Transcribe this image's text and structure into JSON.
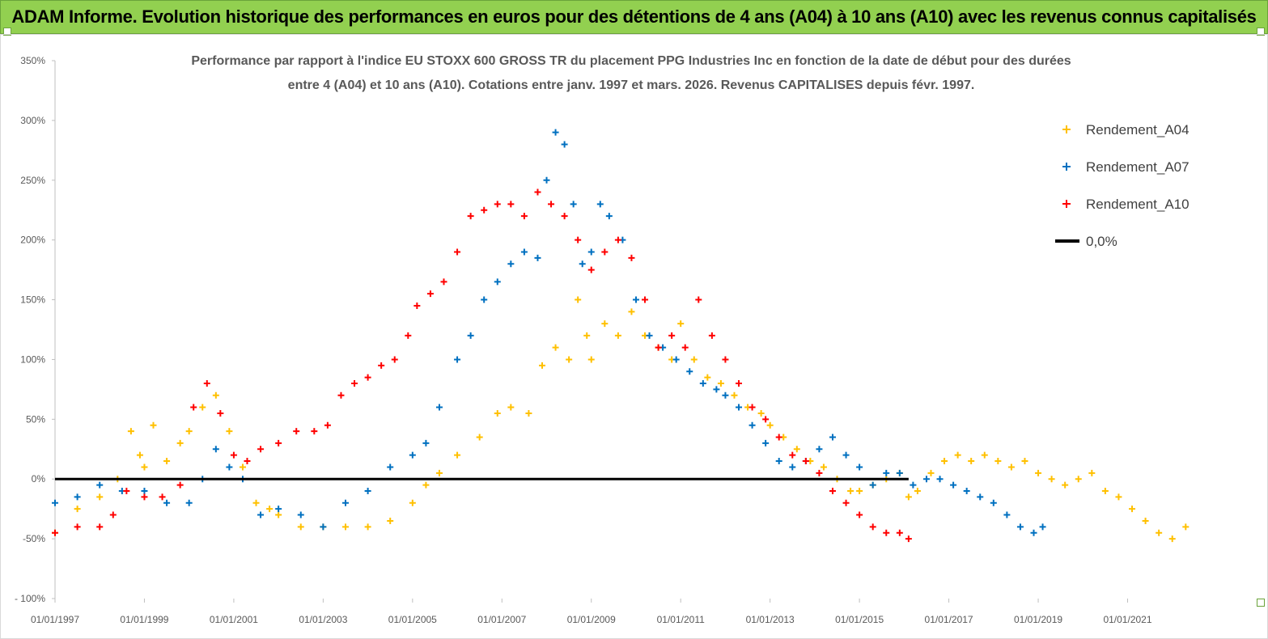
{
  "header": {
    "title": "ADAM Informe. Evolution historique des performances en euros pour des détentions de 4 ans (A04) à 10 ans (A10) avec les revenus connus capitalisés",
    "background": "#92d050"
  },
  "chart_data": {
    "type": "scatter",
    "title_lines": [
      "Performance par rapport à l'indice EU STOXX 600 GROSS TR  du placement PPG Industries Inc en fonction de la date de début pour des durées",
      "entre 4 (A04) et 10 ans (A10). Cotations entre janv. 1997 et mars. 2026. Revenus CAPITALISES depuis févr. 1997."
    ],
    "xlabel": "",
    "ylabel": "",
    "x_range": [
      1997.0,
      2023.2
    ],
    "ylim": [
      -100,
      350
    ],
    "y_ticks": [
      -100,
      -50,
      0,
      50,
      100,
      150,
      200,
      250,
      300,
      350
    ],
    "y_tick_labels": [
      "- 100%",
      "-50%",
      "0%",
      "50%",
      "100%",
      "150%",
      "200%",
      "250%",
      "300%",
      "350%"
    ],
    "x_ticks": [
      1997,
      1999,
      2001,
      2003,
      2005,
      2007,
      2009,
      2011,
      2013,
      2015,
      2017,
      2019,
      2021
    ],
    "x_tick_labels": [
      "01/01/1997",
      "01/01/1999",
      "01/01/2001",
      "01/01/2003",
      "01/01/2005",
      "01/01/2007",
      "01/01/2009",
      "01/01/2011",
      "01/01/2013",
      "01/01/2015",
      "01/01/2017",
      "01/01/2019",
      "01/01/2021"
    ],
    "legend_position": "top-right",
    "series": [
      {
        "name": "Rendement_A04",
        "color": "#ffc000",
        "x": [
          1997.0,
          1997.5,
          1998.0,
          1998.4,
          1998.7,
          1998.9,
          1999.0,
          1999.2,
          1999.5,
          1999.8,
          2000.0,
          2000.3,
          2000.6,
          2000.9,
          2001.2,
          2001.5,
          2001.8,
          2002.0,
          2002.5,
          2003.0,
          2003.5,
          2004.0,
          2004.5,
          2005.0,
          2005.3,
          2005.6,
          2006.0,
          2006.5,
          2006.9,
          2007.2,
          2007.6,
          2007.9,
          2008.2,
          2008.5,
          2008.7,
          2008.9,
          2009.0,
          2009.3,
          2009.6,
          2009.9,
          2010.2,
          2010.5,
          2010.8,
          2011.0,
          2011.3,
          2011.6,
          2011.9,
          2012.2,
          2012.5,
          2012.8,
          2013.0,
          2013.3,
          2013.6,
          2013.9,
          2014.2,
          2014.5,
          2014.8,
          2015.0,
          2015.3,
          2015.6,
          2015.9,
          2016.1,
          2016.3,
          2016.6,
          2016.9,
          2017.2,
          2017.5,
          2017.8,
          2018.1,
          2018.4,
          2018.7,
          2019.0,
          2019.3,
          2019.6,
          2019.9,
          2020.2,
          2020.5,
          2020.8,
          2021.1,
          2021.4,
          2021.7,
          2022.0,
          2022.3
        ],
        "values": [
          -45,
          -25,
          -15,
          0,
          40,
          20,
          10,
          45,
          15,
          30,
          40,
          60,
          70,
          40,
          10,
          -20,
          -25,
          -30,
          -40,
          -40,
          -40,
          -40,
          -35,
          -20,
          -5,
          5,
          20,
          35,
          55,
          60,
          55,
          95,
          110,
          100,
          150,
          120,
          100,
          130,
          120,
          140,
          120,
          110,
          100,
          130,
          100,
          85,
          80,
          70,
          60,
          55,
          45,
          35,
          25,
          15,
          10,
          0,
          -10,
          -10,
          -5,
          0,
          5,
          -15,
          -10,
          5,
          15,
          20,
          15,
          20,
          15,
          10,
          15,
          5,
          0,
          -5,
          0,
          5,
          -10,
          -15,
          -25,
          -35,
          -45,
          -50,
          -40
        ]
      },
      {
        "name": "Rendement_A07",
        "color": "#0070c0",
        "x": [
          1997.0,
          1997.5,
          1998.0,
          1998.5,
          1999.0,
          1999.5,
          2000.0,
          2000.3,
          2000.6,
          2000.9,
          2001.2,
          2001.6,
          2002.0,
          2002.5,
          2003.0,
          2003.5,
          2004.0,
          2004.5,
          2005.0,
          2005.3,
          2005.6,
          2006.0,
          2006.3,
          2006.6,
          2006.9,
          2007.2,
          2007.5,
          2007.8,
          2008.0,
          2008.2,
          2008.4,
          2008.6,
          2008.8,
          2009.0,
          2009.2,
          2009.4,
          2009.7,
          2010.0,
          2010.3,
          2010.6,
          2010.9,
          2011.2,
          2011.5,
          2011.8,
          2012.0,
          2012.3,
          2012.6,
          2012.9,
          2013.2,
          2013.5,
          2013.8,
          2014.1,
          2014.4,
          2014.7,
          2015.0,
          2015.3,
          2015.6,
          2015.9,
          2016.2,
          2016.5,
          2016.8,
          2017.1,
          2017.4,
          2017.7,
          2018.0,
          2018.3,
          2018.6,
          2018.9,
          2019.1
        ],
        "values": [
          -20,
          -15,
          -5,
          -10,
          -10,
          -20,
          -20,
          0,
          25,
          10,
          0,
          -30,
          -25,
          -30,
          -40,
          -20,
          -10,
          10,
          20,
          30,
          60,
          100,
          120,
          150,
          165,
          180,
          190,
          185,
          250,
          290,
          280,
          230,
          180,
          190,
          230,
          220,
          200,
          150,
          120,
          110,
          100,
          90,
          80,
          75,
          70,
          60,
          45,
          30,
          15,
          10,
          15,
          25,
          35,
          20,
          10,
          -5,
          5,
          5,
          -5,
          0,
          0,
          -5,
          -10,
          -15,
          -20,
          -30,
          -40,
          -45,
          -40
        ]
      },
      {
        "name": "Rendement_A10",
        "color": "#ff0000",
        "x": [
          1997.0,
          1997.5,
          1998.0,
          1998.3,
          1998.6,
          1999.0,
          1999.4,
          1999.8,
          2000.1,
          2000.4,
          2000.7,
          2001.0,
          2001.3,
          2001.6,
          2002.0,
          2002.4,
          2002.8,
          2003.1,
          2003.4,
          2003.7,
          2004.0,
          2004.3,
          2004.6,
          2004.9,
          2005.1,
          2005.4,
          2005.7,
          2006.0,
          2006.3,
          2006.6,
          2006.9,
          2007.2,
          2007.5,
          2007.8,
          2008.1,
          2008.4,
          2008.7,
          2009.0,
          2009.3,
          2009.6,
          2009.9,
          2010.2,
          2010.5,
          2010.8,
          2011.1,
          2011.4,
          2011.7,
          2012.0,
          2012.3,
          2012.6,
          2012.9,
          2013.2,
          2013.5,
          2013.8,
          2014.1,
          2014.4,
          2014.7,
          2015.0,
          2015.3,
          2015.6,
          2015.9,
          2016.1
        ],
        "values": [
          -45,
          -40,
          -40,
          -30,
          -10,
          -15,
          -15,
          -5,
          60,
          80,
          55,
          20,
          15,
          25,
          30,
          40,
          40,
          45,
          70,
          80,
          85,
          95,
          100,
          120,
          145,
          155,
          165,
          190,
          220,
          225,
          230,
          230,
          220,
          240,
          230,
          220,
          200,
          175,
          190,
          200,
          185,
          150,
          110,
          120,
          110,
          150,
          120,
          100,
          80,
          60,
          50,
          35,
          20,
          15,
          5,
          -10,
          -20,
          -30,
          -40,
          -45,
          -45,
          -50
        ]
      },
      {
        "name": "0,0%",
        "color": "#000000",
        "x": [
          1997.0,
          2016.1
        ],
        "values": [
          0,
          0
        ]
      }
    ]
  }
}
